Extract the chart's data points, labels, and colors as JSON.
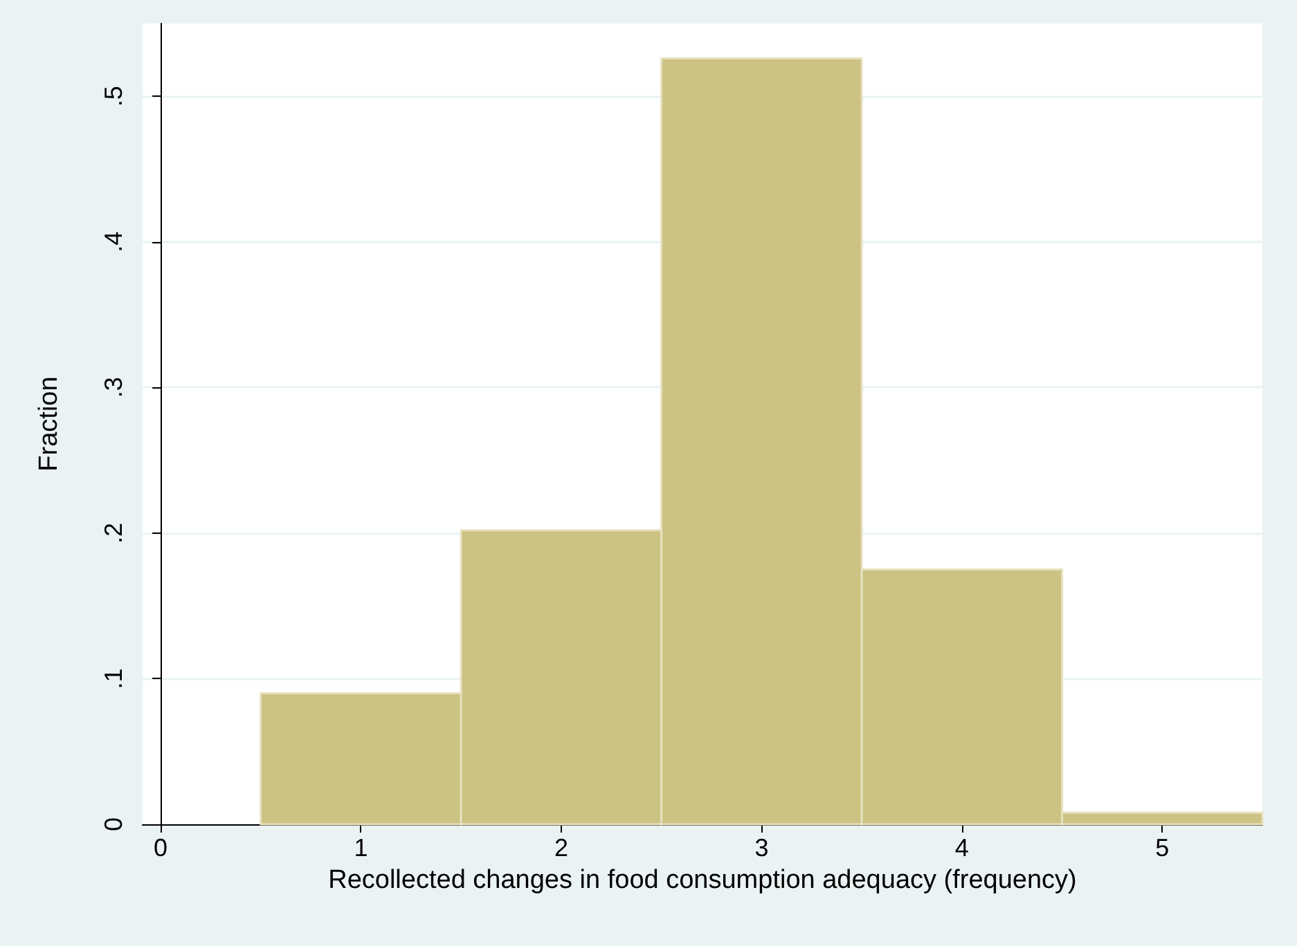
{
  "chart_data": {
    "type": "histogram",
    "xlabel": "Recollected changes in food consumption adequacy (frequency)",
    "ylabel": "Fraction",
    "bins": [
      0.5,
      1.5,
      2.5,
      3.5,
      4.5,
      5.5
    ],
    "values": [
      0.09,
      0.202,
      0.526,
      0.175,
      0.008
    ],
    "color": "#cbc283",
    "xlim": [
      -0.09,
      5.5
    ],
    "xticks": [
      0,
      1,
      2,
      3,
      4,
      5
    ],
    "ylim": [
      0,
      0.55
    ],
    "yticks": [
      0,
      {
        "value": 0.1,
        "label": ".1"
      },
      {
        "value": 0.2,
        "label": ".2"
      },
      {
        "value": 0.3,
        "label": ".3"
      },
      {
        "value": 0.4,
        "label": ".4"
      },
      {
        "value": 0.5,
        "label": ".5"
      }
    ],
    "grid": "y"
  }
}
